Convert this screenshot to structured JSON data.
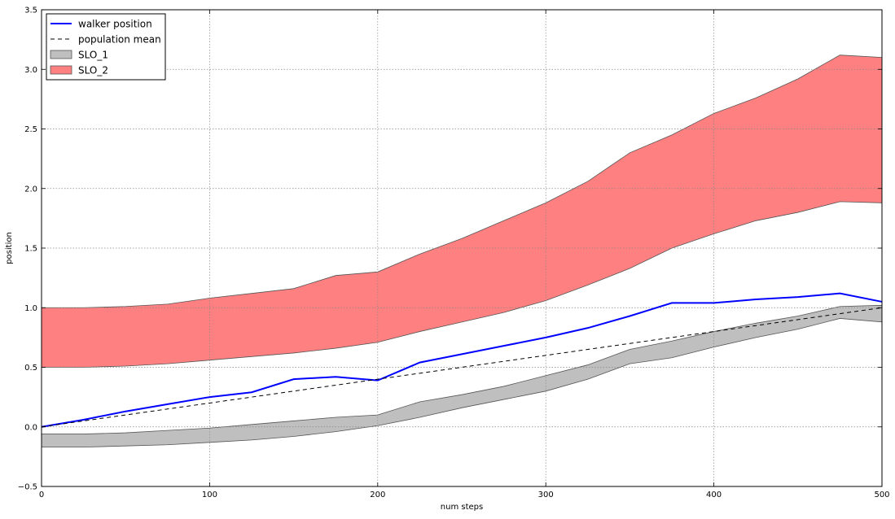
{
  "chart_data": {
    "type": "line",
    "title": "",
    "xlabel": "num steps",
    "ylabel": "position",
    "xlim": [
      0,
      500
    ],
    "ylim": [
      -0.5,
      3.5
    ],
    "grid": true,
    "legend_placement": "top-left",
    "xticks": [
      0,
      100,
      200,
      300,
      400,
      500
    ],
    "yticks": [
      -0.5,
      0.0,
      0.5,
      1.0,
      1.5,
      2.0,
      2.5,
      3.0,
      3.5
    ],
    "xtick_labels": [
      "0",
      "100",
      "200",
      "300",
      "400",
      "500"
    ],
    "ytick_labels": [
      "−0.5",
      "0.0",
      "0.5",
      "1.0",
      "1.5",
      "2.0",
      "2.5",
      "3.0",
      "3.5"
    ],
    "x": [
      0,
      25,
      50,
      75,
      100,
      125,
      150,
      175,
      200,
      225,
      250,
      275,
      300,
      325,
      350,
      375,
      400,
      425,
      450,
      475,
      500
    ],
    "series": [
      {
        "name": "walker position",
        "kind": "line",
        "color": "#0000ff",
        "values": [
          0.0,
          0.06,
          0.13,
          0.19,
          0.25,
          0.29,
          0.4,
          0.42,
          0.39,
          0.54,
          0.61,
          0.68,
          0.75,
          0.83,
          0.93,
          1.04,
          1.04,
          1.07,
          1.09,
          1.12,
          1.05
        ]
      },
      {
        "name": "population mean",
        "kind": "dashed-line",
        "color": "#000000",
        "values": [
          0.0,
          0.05,
          0.1,
          0.15,
          0.2,
          0.25,
          0.3,
          0.35,
          0.4,
          0.45,
          0.5,
          0.55,
          0.6,
          0.65,
          0.7,
          0.75,
          0.8,
          0.85,
          0.9,
          0.95,
          1.0
        ]
      },
      {
        "name": "SLO_1",
        "kind": "band",
        "color": "#bfbfbf",
        "lower": [
          -0.17,
          -0.17,
          -0.16,
          -0.15,
          -0.13,
          -0.11,
          -0.08,
          -0.04,
          0.01,
          0.08,
          0.16,
          0.23,
          0.3,
          0.4,
          0.53,
          0.58,
          0.67,
          0.75,
          0.82,
          0.91,
          0.88
        ],
        "upper": [
          -0.06,
          -0.06,
          -0.05,
          -0.03,
          -0.01,
          0.02,
          0.05,
          0.08,
          0.1,
          0.21,
          0.27,
          0.34,
          0.43,
          0.52,
          0.65,
          0.72,
          0.8,
          0.87,
          0.93,
          1.01,
          1.02
        ]
      },
      {
        "name": "SLO_2",
        "kind": "band",
        "color": "#ff8080",
        "lower": [
          0.5,
          0.5,
          0.51,
          0.53,
          0.56,
          0.59,
          0.62,
          0.66,
          0.71,
          0.8,
          0.88,
          0.96,
          1.06,
          1.19,
          1.33,
          1.5,
          1.62,
          1.73,
          1.8,
          1.89,
          1.88
        ],
        "upper": [
          1.0,
          1.0,
          1.01,
          1.03,
          1.08,
          1.12,
          1.16,
          1.27,
          1.3,
          1.45,
          1.58,
          1.73,
          1.88,
          2.06,
          2.3,
          2.45,
          2.63,
          2.76,
          2.92,
          3.12,
          3.1
        ]
      }
    ]
  }
}
